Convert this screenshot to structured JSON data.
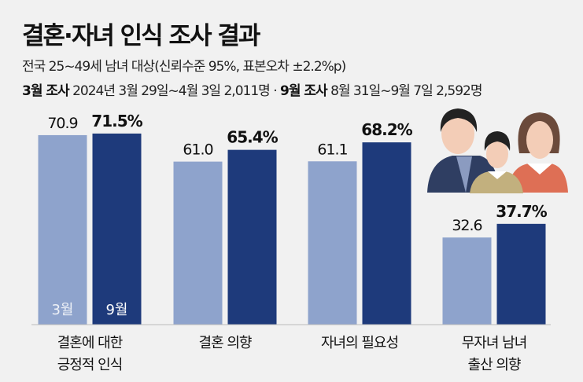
{
  "header": {
    "title": "결혼·자녀 인식 조사 결과",
    "subtitle": "전국 25~49세 남녀 대상(신뢰수준 95%, 표본오차 ±2.2%p)",
    "survey1_label": "3월 조사",
    "survey1_detail": " 2024년 3월 29일~4월 3일 2,011명 · ",
    "survey2_label": "9월 조사",
    "survey2_detail": " 8월 31일~9월 7일 2,592명"
  },
  "colors": {
    "march": "#8ea3cc",
    "september": "#1e3a7b",
    "background": "#f1f1f1"
  },
  "chart_data": {
    "type": "bar",
    "title": "결혼·자녀 인식 조사 결과",
    "categories": [
      [
        "결혼에 대한",
        "긍정적 인식"
      ],
      [
        "결혼 의향"
      ],
      [
        "자녀의 필요성"
      ],
      [
        "무자녀 남녀",
        "출산 의향"
      ]
    ],
    "series": [
      {
        "name": "3월",
        "values": [
          70.9,
          61.0,
          61.1,
          32.6
        ],
        "labels": [
          "70.9",
          "61.0",
          "61.1",
          "32.6"
        ]
      },
      {
        "name": "9월",
        "values": [
          71.5,
          65.4,
          68.2,
          37.7
        ],
        "labels": [
          "71.5%",
          "65.4%",
          "68.2%",
          "37.7%"
        ]
      }
    ],
    "ylim": [
      0,
      100
    ],
    "grid": false,
    "legend": "inside-first-bars"
  }
}
